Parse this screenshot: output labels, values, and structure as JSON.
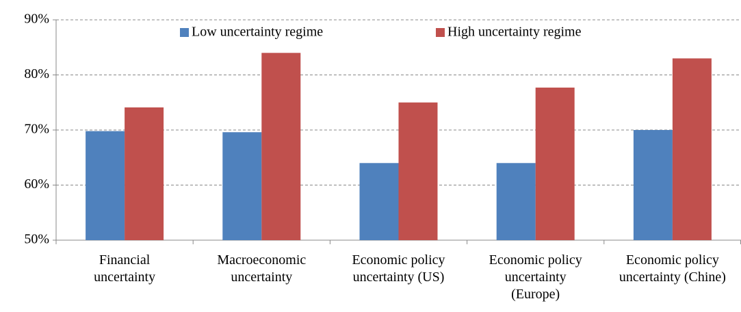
{
  "chart_data": {
    "type": "bar",
    "categories": [
      "Financial uncertainty",
      "Macroeconomic uncertainty",
      "Economic policy uncertainty (US)",
      "Economic policy uncertainty (Europe)",
      "Economic policy uncertainty (Chine)"
    ],
    "series": [
      {
        "name": "Low uncertainty regime",
        "color": "#4f81bd",
        "values": [
          69.8,
          69.6,
          64,
          64,
          70
        ]
      },
      {
        "name": "High uncertainty regime",
        "color": "#c0504d",
        "values": [
          74.1,
          84,
          75,
          77.7,
          83
        ]
      }
    ],
    "ylim": [
      50,
      90
    ],
    "yticks": [
      {
        "value": 50,
        "label": "50%"
      },
      {
        "value": 60,
        "label": "60%"
      },
      {
        "value": 70,
        "label": "70%"
      },
      {
        "value": 80,
        "label": "80%"
      },
      {
        "value": 90,
        "label": "90%"
      }
    ],
    "grid": true,
    "legend": "top"
  }
}
